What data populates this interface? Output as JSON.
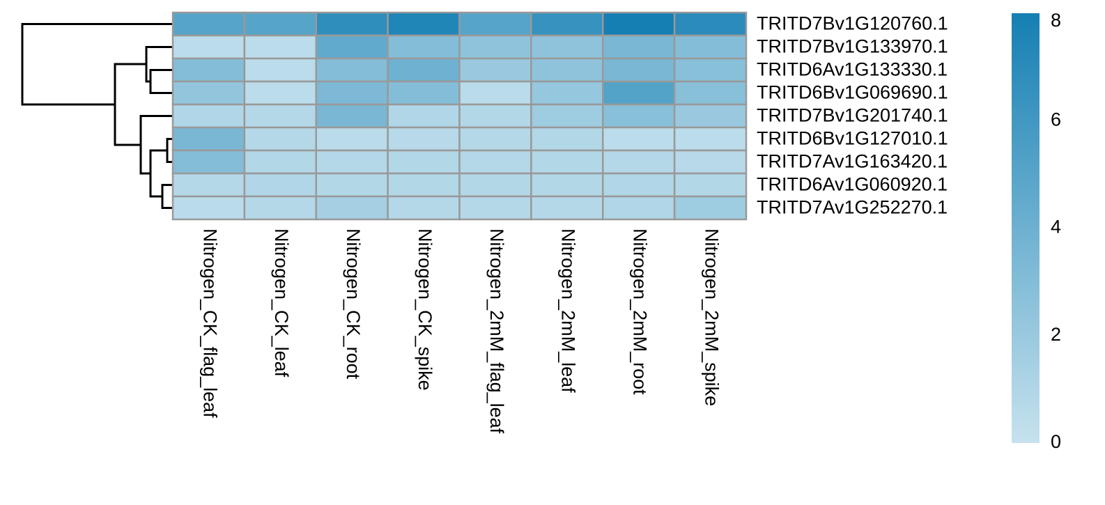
{
  "chart_data": {
    "type": "heatmap",
    "rows": [
      "TRITD7Bv1G120760.1",
      "TRITD7Bv1G133970.1",
      "TRITD6Av1G133330.1",
      "TRITD6Bv1G069690.1",
      "TRITD7Bv1G201740.1",
      "TRITD6Bv1G127010.1",
      "TRITD7Av1G163420.1",
      "TRITD6Av1G060920.1",
      "TRITD7Av1G252270.1"
    ],
    "columns": [
      "Nitrogen_CK_flag_leaf",
      "Nitrogen_CK_leaf",
      "Nitrogen_CK_root",
      "Nitrogen_CK_spike",
      "Nitrogen_2mM_flag_leaf",
      "Nitrogen_2mM_leaf",
      "Nitrogen_2mM_root",
      "Nitrogen_2mM_spike"
    ],
    "values": [
      [
        5,
        5,
        6.8,
        7.5,
        5,
        6.5,
        8,
        7
      ],
      [
        0.5,
        0.5,
        4.5,
        3,
        2.5,
        2.5,
        3.5,
        3
      ],
      [
        3,
        0.5,
        3,
        4,
        2,
        2.5,
        3.5,
        2.8
      ],
      [
        2.3,
        0.5,
        3.3,
        3,
        0.6,
        2.2,
        5.2,
        2.8
      ],
      [
        1,
        0.8,
        3.5,
        1,
        0.9,
        1.8,
        2.8,
        2
      ],
      [
        3.5,
        0.8,
        0.6,
        0.7,
        0.8,
        0.9,
        0.5,
        0.5
      ],
      [
        3,
        0.9,
        0.8,
        0.9,
        0.8,
        0.9,
        0.8,
        0.7
      ],
      [
        0.8,
        1,
        0.9,
        0.9,
        0.9,
        0.9,
        1,
        0.9
      ],
      [
        0.6,
        0.8,
        1.5,
        0.8,
        0.8,
        0.8,
        1,
        1.8
      ]
    ],
    "colorlim": [
      0,
      8
    ],
    "colorticks": [
      0,
      2,
      4,
      6,
      8
    ],
    "low_color": "#c6e2ee",
    "high_color": "#157fb3"
  }
}
